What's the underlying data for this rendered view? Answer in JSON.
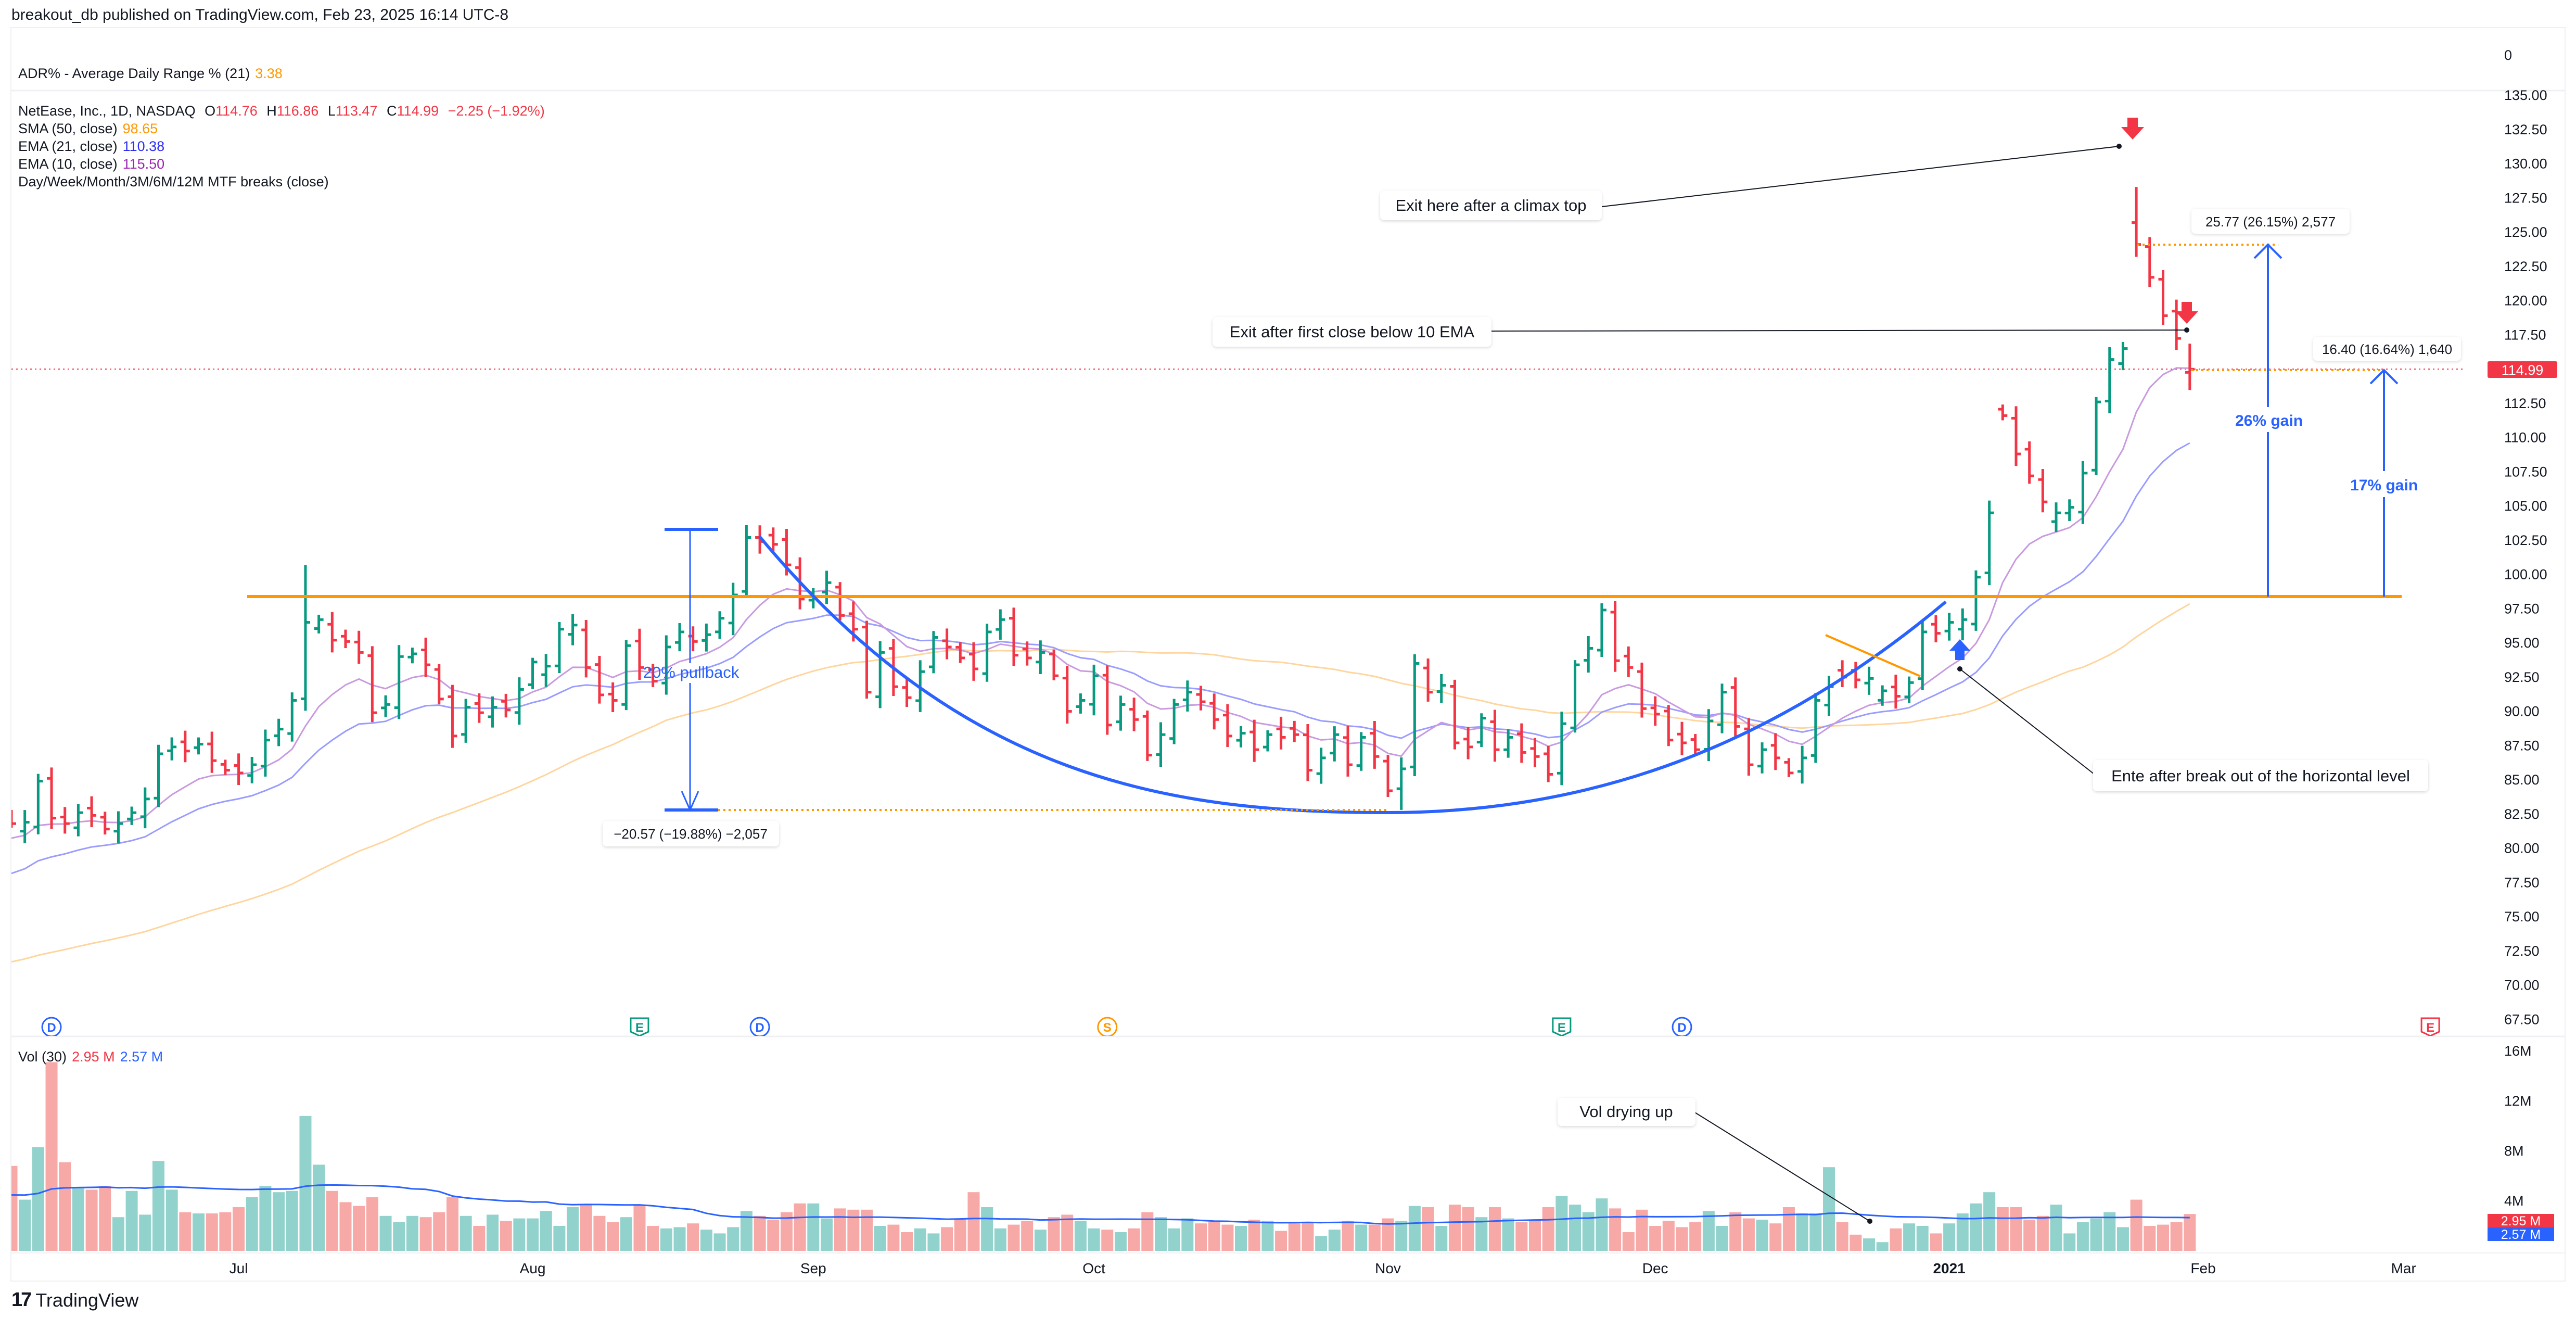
{
  "header": {
    "published": "breakout_db published on TradingView.com, Feb 23, 2025 16:14 UTC-8"
  },
  "adr": {
    "label": "ADR% - Average Daily Range % (21)",
    "value": "3.38",
    "axis_label": "0"
  },
  "legend": {
    "symbol": "NetEase, Inc., 1D, NASDAQ",
    "o_label": "O",
    "o": "114.76",
    "h_label": "H",
    "h": "116.86",
    "l_label": "L",
    "l": "113.47",
    "c_label": "C",
    "c": "114.99",
    "change": "−2.25 (−1.92%)",
    "indicators": [
      {
        "label": "SMA (50, close)",
        "value": "98.65",
        "color": "#ff9800"
      },
      {
        "label": "EMA (21, close)",
        "value": "110.38",
        "color": "#2f2ff5"
      },
      {
        "label": "EMA (10, close)",
        "value": "115.50",
        "color": "#9c27b0"
      }
    ],
    "mtf": "Day/Week/Month/3M/6M/12M MTF breaks (close)"
  },
  "annotations": {
    "pullback_text": "20% pullback",
    "pullback_measure": "−20.57 (−19.88%) −2,057",
    "climax_note": "Exit here after a climax top",
    "ema_exit_note": "Exit after first close below 10 EMA",
    "entry_note": "Ente after break out of the horizontal level",
    "gain26_text": "26% gain",
    "gain26_measure": "25.77 (26.15%) 2,577",
    "gain17_text": "17% gain",
    "gain17_measure": "16.40 (16.64%) 1,640",
    "vol_note": "Vol drying up"
  },
  "events": [
    {
      "letter": "D",
      "bar": 3,
      "kind": "dividend"
    },
    {
      "letter": "E",
      "bar": 47,
      "kind": "earnings"
    },
    {
      "letter": "D",
      "bar": 56,
      "kind": "dividend"
    },
    {
      "letter": "S",
      "bar": 82,
      "kind": "split"
    },
    {
      "letter": "E",
      "bar": 116,
      "kind": "earnings"
    },
    {
      "letter": "D",
      "bar": 125,
      "kind": "dividend"
    },
    {
      "letter": "E",
      "bar": 181,
      "kind": "earnings-upcoming"
    }
  ],
  "volume": {
    "label": "Vol (30)",
    "value": "2.95 M",
    "ma_value": "2.57 M",
    "axis_ticks": [
      "16M",
      "12M",
      "8M",
      "4M"
    ]
  },
  "price_label": "114.99",
  "time_axis": [
    {
      "label": "Jul",
      "bar": 17
    },
    {
      "label": "Aug",
      "bar": 39
    },
    {
      "label": "Sep",
      "bar": 60
    },
    {
      "label": "Oct",
      "bar": 81
    },
    {
      "label": "Nov",
      "bar": 103
    },
    {
      "label": "Dec",
      "bar": 123
    },
    {
      "label": "2021",
      "bar": 145
    },
    {
      "label": "Feb",
      "bar": 164
    },
    {
      "label": "Mar",
      "bar": 179
    }
  ],
  "colors": {
    "up": "#089981",
    "down": "#f23645",
    "vol_up": "#92d2cc",
    "vol_down": "#f7a9a7",
    "ema10": "#c99ae0",
    "ema21": "#9a9cff",
    "sma50": "#ffd59e",
    "vol_ma": "#2962ff",
    "level": "#ff9800",
    "drawing": "#2962ff"
  },
  "branding": "TradingView",
  "chart_data": {
    "type": "ohlc",
    "title": "NetEase, Inc., 1D, NASDAQ",
    "price_axis": {
      "min": 67.5,
      "max": 135,
      "ticks": [
        "135.00",
        "132.50",
        "130.00",
        "127.50",
        "125.00",
        "122.50",
        "120.00",
        "117.50",
        "112.50",
        "110.00",
        "107.50",
        "105.00",
        "102.50",
        "100.00",
        "97.50",
        "95.00",
        "92.50",
        "90.00",
        "87.50",
        "85.00",
        "82.50",
        "80.00",
        "77.50",
        "75.00",
        "72.50",
        "70.00",
        "67.50"
      ]
    },
    "horizontal_level": 98.5,
    "direction": "rggrrgrrgggggrgrrrggggggrrrrgggrrrgrgrgggggrrrgrrggrggggrrrrggrrrgrrggrrrggrrgrrggrgrrgggrrrgrgrrrggrgrrggrgrrgrgrrrggggrrrrrrrggrrgrrgggrrggrggrggggrrrrggggggrrrr",
    "closes": [
      81.8,
      81.9,
      84.9,
      82.2,
      81.8,
      82.6,
      82.4,
      81.4,
      81.8,
      82.6,
      83.6,
      86.9,
      87.4,
      87.1,
      87.6,
      86.4,
      85.7,
      85.5,
      86.1,
      87.9,
      88.7,
      90.8,
      96.5,
      96.7,
      95.2,
      95.1,
      94.3,
      89.9,
      90.5,
      94.0,
      94.2,
      93.4,
      90.9,
      88.2,
      90.3,
      89.9,
      90.3,
      90.1,
      91.6,
      93.6,
      93.3,
      96.0,
      96.3,
      93.2,
      91.2,
      90.8,
      94.8,
      93.2,
      92.2,
      94.7,
      95.8,
      95.1,
      95.6,
      96.8,
      98.5,
      102.7,
      102.4,
      102.2,
      100.7,
      98.2,
      98.4,
      99.4,
      97.0,
      96.0,
      91.4,
      94.3,
      91.8,
      91.0,
      92.9,
      95.4,
      94.7,
      93.9,
      93.1,
      95.8,
      96.7,
      94.1,
      93.9,
      94.3,
      92.6,
      90.0,
      90.8,
      92.6,
      89.0,
      90.5,
      89.4,
      86.8,
      88.3,
      90.5,
      91.4,
      90.7,
      89.4,
      88.2,
      88.4,
      87.2,
      88.3,
      88.1,
      88.3,
      85.7,
      86.6,
      88.3,
      86.1,
      88.1,
      86.7,
      84.2,
      85.8,
      93.5,
      91.4,
      91.9,
      87.7,
      87.4,
      89.5,
      87.2,
      88.1,
      87.0,
      86.7,
      85.4,
      89.1,
      93.4,
      94.6,
      97.4,
      93.7,
      93.2,
      90.2,
      89.8,
      87.9,
      87.7,
      87.2,
      89.3,
      91.4,
      88.9,
      86.1,
      87.2,
      86.6,
      85.5,
      86.6,
      90.8,
      91.8,
      92.5,
      92.3,
      92.4,
      91.5,
      91.1,
      92.1,
      95.8,
      95.7,
      96.5,
      96.7,
      99.8,
      104.5,
      111.6,
      108.8,
      107.2,
      105.3,
      104.5,
      104.9,
      107.4,
      112.6,
      115.7,
      116.5,
      124.1,
      121.7,
      118.9,
      117.24,
      114.99
    ],
    "bar_overrides": {
      "22": {
        "h": 100.7
      },
      "55": {
        "h": 103.6
      },
      "104": {
        "l": 82.8
      },
      "159": {
        "o": 125.7,
        "h": 128.3,
        "l": 123.2
      }
    },
    "last_bar": {
      "o": 114.76,
      "h": 116.86,
      "l": 113.47,
      "c": 114.99
    },
    "volumes_m": [
      6.8,
      4.1,
      8.3,
      15.1,
      7.1,
      5.0,
      4.9,
      5.2,
      2.7,
      4.8,
      2.9,
      7.2,
      4.9,
      3.1,
      3.0,
      3.0,
      3.1,
      3.5,
      4.3,
      5.2,
      4.7,
      4.8,
      10.8,
      6.9,
      4.8,
      3.9,
      3.6,
      4.3,
      2.8,
      2.3,
      2.8,
      2.7,
      3.1,
      4.3,
      2.8,
      2.0,
      2.9,
      2.4,
      2.6,
      2.6,
      3.2,
      2.0,
      3.5,
      3.7,
      2.8,
      2.3,
      2.7,
      3.7,
      2.0,
      1.8,
      1.9,
      2.2,
      1.7,
      1.4,
      1.9,
      3.2,
      2.8,
      2.5,
      3.1,
      3.8,
      3.8,
      2.6,
      3.4,
      3.3,
      3.3,
      2.0,
      2.1,
      1.5,
      1.8,
      1.4,
      1.9,
      2.6,
      4.7,
      3.5,
      1.8,
      2.1,
      2.4,
      1.7,
      2.7,
      2.9,
      2.4,
      1.8,
      1.7,
      1.5,
      1.8,
      3.1,
      2.7,
      1.8,
      2.6,
      2.2,
      2.3,
      2.1,
      2.0,
      2.5,
      2.4,
      1.6,
      2.2,
      2.3,
      1.2,
      1.7,
      2.4,
      2.1,
      2.1,
      2.6,
      2.4,
      3.6,
      3.5,
      2.0,
      3.7,
      3.5,
      2.7,
      3.5,
      2.6,
      2.3,
      2.5,
      3.5,
      4.4,
      3.7,
      3.1,
      4.2,
      3.4,
      1.5,
      3.3,
      2.0,
      2.4,
      1.9,
      2.3,
      3.2,
      2.0,
      3.1,
      2.6,
      2.5,
      2.2,
      3.5,
      3.0,
      3.0,
      6.7,
      2.3,
      1.3,
      1.0,
      0.7,
      1.8,
      2.2,
      2.0,
      1.4,
      2.2,
      3.0,
      3.8,
      4.7,
      3.5,
      3.5,
      2.5,
      2.8,
      3.7,
      1.4,
      2.3,
      2.6,
      3.1,
      1.9,
      4.1,
      2.0,
      2.1,
      2.3,
      2.95
    ],
    "volume_axis": {
      "min": 0,
      "max": 16,
      "unit": "M"
    },
    "ma_seeds": {
      "ema10": 80.5,
      "ema21": 77.8,
      "sma50": 71.5,
      "vol_ma30": 4.4
    }
  }
}
